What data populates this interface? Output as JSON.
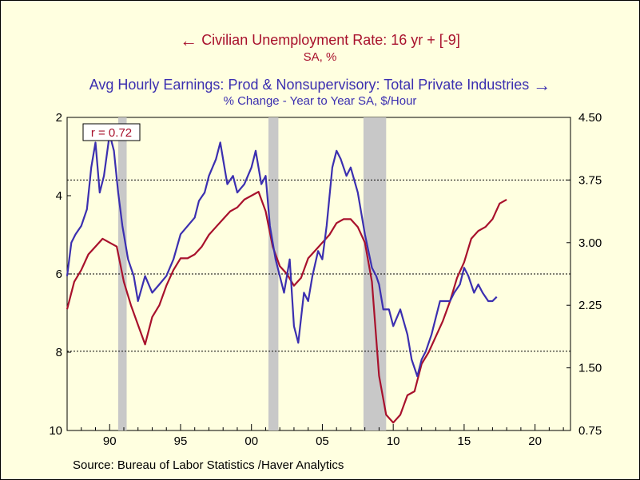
{
  "legend": {
    "left_series": "Civilian Unemployment Rate: 16 yr + [-9]",
    "left_units": "SA, %",
    "right_series": "Avg Hourly Earnings: Prod & Nonsupervisory: Total Private Industries",
    "right_units": "% Change - Year to Year    SA, $/Hour",
    "left_arrow": "←",
    "right_arrow": "→"
  },
  "source": "Source:  Bureau of Labor Statistics /Haver Analytics",
  "annotation": "r = 0.72",
  "colors": {
    "unemployment": "#a8112c",
    "earnings": "#3b2fb0",
    "background": "#ffffe0",
    "recession": "#c8c8c8"
  },
  "chart_data": {
    "type": "line",
    "x_ticks": [
      {
        "label": "90",
        "value": 1990
      },
      {
        "label": "95",
        "value": 1995
      },
      {
        "label": "00",
        "value": 2000
      },
      {
        "label": "05",
        "value": 2005
      },
      {
        "label": "10",
        "value": 2010
      },
      {
        "label": "15",
        "value": 2015
      },
      {
        "label": "20",
        "value": 2020
      }
    ],
    "xlim": [
      1987,
      2022.5
    ],
    "left_axis": {
      "ylim": [
        10,
        2
      ],
      "inverted": true,
      "ticks": [
        "2",
        "4",
        "6",
        "8",
        "10"
      ]
    },
    "right_axis": {
      "ylim": [
        0.75,
        4.5
      ],
      "ticks": [
        "4.50",
        "3.75",
        "3.00",
        "2.25",
        "1.50",
        "0.75"
      ]
    },
    "gridlines_right": [
      3.75,
      2.625,
      1.7
    ],
    "recessions": [
      [
        1990.6,
        1991.2
      ],
      [
        2001.2,
        2001.9
      ],
      [
        2007.9,
        2009.5
      ]
    ],
    "series": [
      {
        "name": "Civilian Unemployment Rate: 16 yr + [-9]",
        "axis": "left",
        "x": [
          1987,
          1987.5,
          1988,
          1988.5,
          1989,
          1989.5,
          1990,
          1990.5,
          1991,
          1991.5,
          1992,
          1992.5,
          1993,
          1993.5,
          1994,
          1994.5,
          1995,
          1995.5,
          1996,
          1996.5,
          1997,
          1997.5,
          1998,
          1998.5,
          1999,
          1999.5,
          2000,
          2000.5,
          2001,
          2001.5,
          2002,
          2002.5,
          2003,
          2003.5,
          2004,
          2004.5,
          2005,
          2005.5,
          2006,
          2006.5,
          2007,
          2007.5,
          2008,
          2008.5,
          2009,
          2009.5,
          2010,
          2010.5,
          2011,
          2011.5,
          2012,
          2012.5,
          2013,
          2013.5,
          2014,
          2014.5,
          2015,
          2015.5,
          2016,
          2016.5,
          2017,
          2017.5,
          2018
        ],
        "values": [
          6.9,
          6.2,
          5.9,
          5.5,
          5.3,
          5.1,
          5.2,
          5.3,
          6.2,
          6.8,
          7.3,
          7.8,
          7.1,
          6.8,
          6.3,
          5.9,
          5.6,
          5.6,
          5.5,
          5.3,
          5.0,
          4.8,
          4.6,
          4.4,
          4.3,
          4.1,
          4.0,
          3.9,
          4.4,
          5.3,
          5.8,
          6.0,
          6.3,
          6.1,
          5.6,
          5.4,
          5.2,
          5.0,
          4.7,
          4.6,
          4.6,
          4.8,
          5.2,
          6.2,
          8.6,
          9.6,
          9.8,
          9.6,
          9.1,
          9.0,
          8.3,
          8.0,
          7.6,
          7.2,
          6.7,
          6.1,
          5.7,
          5.1,
          4.9,
          4.8,
          4.6,
          4.2,
          4.1
        ]
      },
      {
        "name": "Avg Hourly Earnings: Prod & Nonsupervisory: Total Private Industries",
        "axis": "right",
        "x": [
          1987,
          1987.3,
          1987.6,
          1988,
          1988.4,
          1988.7,
          1989,
          1989.3,
          1989.6,
          1990,
          1990.3,
          1990.6,
          1990.9,
          1991.3,
          1991.7,
          1992,
          1992.5,
          1993,
          1993.5,
          1994,
          1994.5,
          1995,
          1995.5,
          1996,
          1996.3,
          1996.7,
          1997,
          1997.5,
          1997.8,
          1998,
          1998.3,
          1998.7,
          1999,
          1999.5,
          2000,
          2000.3,
          2000.7,
          2001,
          2001.3,
          2001.7,
          2002,
          2002.3,
          2002.7,
          2003,
          2003.3,
          2003.7,
          2004,
          2004.3,
          2004.7,
          2005,
          2005.3,
          2005.7,
          2006,
          2006.3,
          2006.7,
          2007,
          2007.5,
          2008,
          2008.5,
          2008.8,
          2009,
          2009.3,
          2009.7,
          2010,
          2010.5,
          2011,
          2011.3,
          2011.7,
          2012,
          2012.3,
          2012.7,
          2013,
          2013.3,
          2013.7,
          2014,
          2014.3,
          2014.7,
          2015,
          2015.3,
          2015.7,
          2016,
          2016.3,
          2016.7,
          2017,
          2017.3
        ],
        "values": [
          2.6,
          3.0,
          3.1,
          3.2,
          3.4,
          3.9,
          4.2,
          3.6,
          3.8,
          4.3,
          4.1,
          3.6,
          3.2,
          2.8,
          2.6,
          2.3,
          2.6,
          2.4,
          2.5,
          2.6,
          2.8,
          3.1,
          3.2,
          3.3,
          3.5,
          3.6,
          3.8,
          4.0,
          4.2,
          4.0,
          3.7,
          3.8,
          3.6,
          3.7,
          3.9,
          4.1,
          3.7,
          3.8,
          3.2,
          2.8,
          2.6,
          2.4,
          2.8,
          2.0,
          1.8,
          2.4,
          2.3,
          2.6,
          2.9,
          2.8,
          3.2,
          3.9,
          4.1,
          4.0,
          3.8,
          3.9,
          3.6,
          3.1,
          2.7,
          2.6,
          2.5,
          2.2,
          2.2,
          2.0,
          2.2,
          1.9,
          1.6,
          1.4,
          1.6,
          1.7,
          1.9,
          2.1,
          2.3,
          2.3,
          2.3,
          2.4,
          2.5,
          2.7,
          2.6,
          2.4,
          2.5,
          2.4,
          2.3,
          2.3,
          2.35
        ]
      }
    ]
  }
}
